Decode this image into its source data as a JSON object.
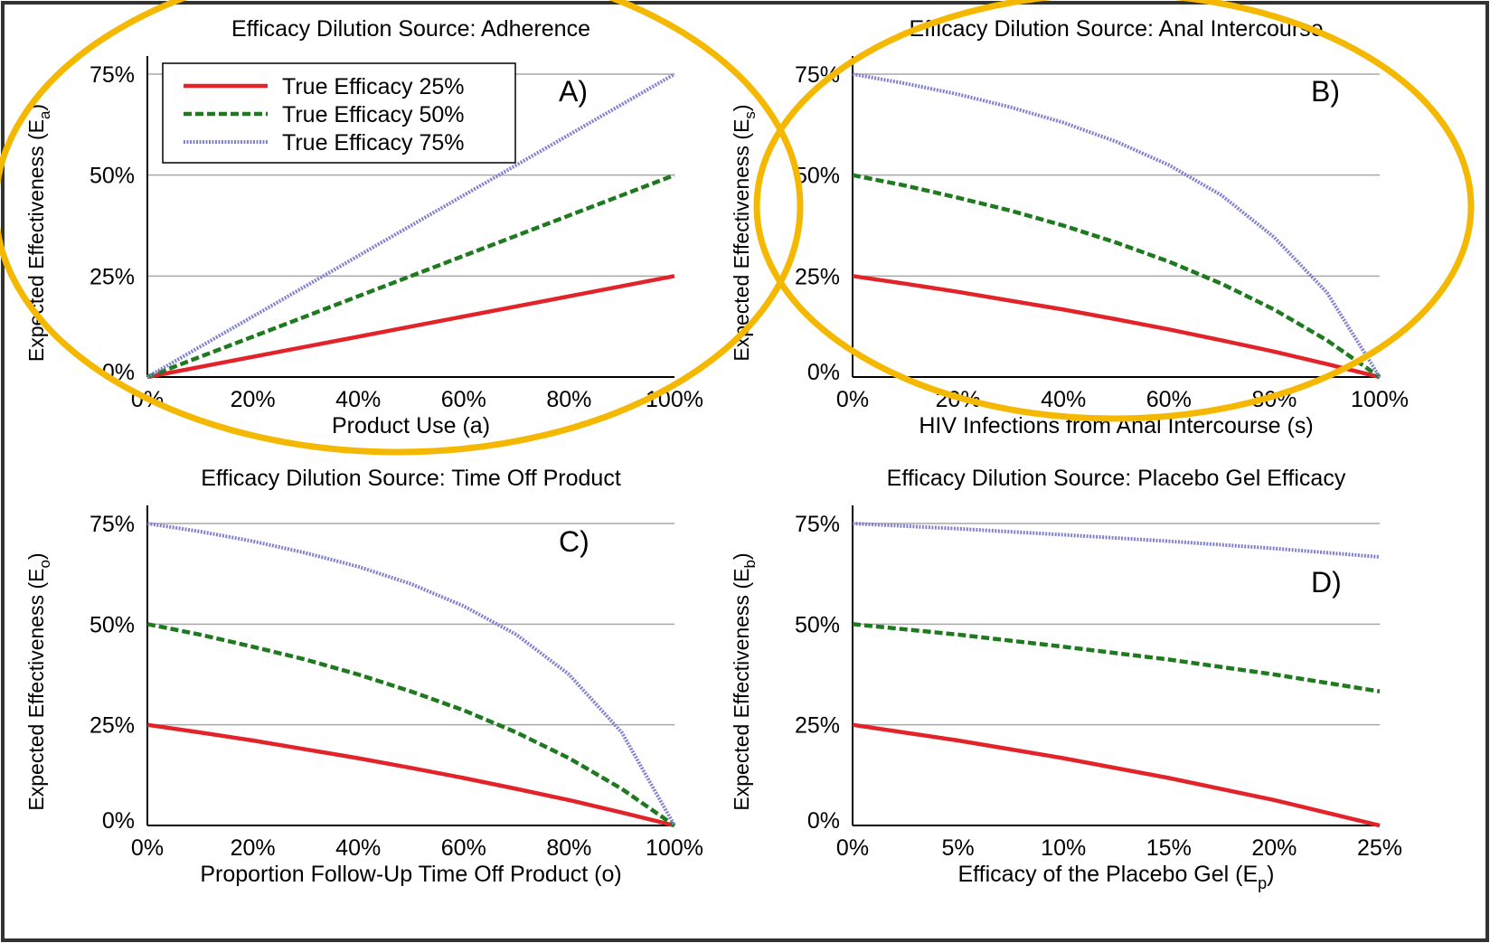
{
  "colors": {
    "frame_border": "#333333",
    "gridline": "#a8a8a8",
    "axis": "#000000",
    "series_25": "#e2232a",
    "series_50": "#1f7a1f",
    "series_75": "#8080d0",
    "annotation_circle": "#f5b800"
  },
  "legend": {
    "placement": "top-left inside panel A",
    "entries": [
      "True Efficacy 25%",
      "True Efficacy 50%",
      "True Efficacy 75%"
    ]
  },
  "annotations": {
    "circles": [
      "panel A",
      "panel B"
    ]
  },
  "chart_data": [
    {
      "type": "line",
      "panel": "A)",
      "title": "Efficacy Dilution Source: Adherence",
      "xlabel": "Product Use (a)",
      "ylabel": "Expected Effectiveness (Ea)",
      "ylabel_main": "Expected Effectiveness (E",
      "ylabel_sub": "a",
      "ylabel_end": ")",
      "xlim": [
        0,
        100
      ],
      "ylim": [
        0,
        75
      ],
      "xticks": [
        "0%",
        "20%",
        "40%",
        "60%",
        "80%",
        "100%"
      ],
      "xtick_values": [
        0,
        20,
        40,
        60,
        80,
        100
      ],
      "yticks": [
        "0%",
        "25%",
        "50%",
        "75%"
      ],
      "ytick_values": [
        0,
        25,
        50,
        75
      ],
      "grid": "horizontal",
      "x": [
        0,
        25,
        50,
        75,
        100
      ],
      "series": [
        {
          "name": "True Efficacy 25%",
          "values": [
            0,
            6.25,
            12.5,
            18.75,
            25
          ]
        },
        {
          "name": "True Efficacy 50%",
          "values": [
            0,
            12.5,
            25,
            37.5,
            50
          ]
        },
        {
          "name": "True Efficacy 75%",
          "values": [
            0,
            18.75,
            37.5,
            56.25,
            75
          ]
        }
      ]
    },
    {
      "type": "line",
      "panel": "B)",
      "title": "Efficacy Dilution Source: Anal Intercourse",
      "xlabel": "HIV Infections from Anal Intercourse (s)",
      "ylabel": "Expected Effectiveness (Es)",
      "ylabel_main": "Expected Effectiveness (E",
      "ylabel_sub": "s",
      "ylabel_end": ")",
      "xlim": [
        0,
        100
      ],
      "ylim": [
        0,
        75
      ],
      "xticks": [
        "0%",
        "20%",
        "40%",
        "60%",
        "80%",
        "100%"
      ],
      "xtick_values": [
        0,
        20,
        40,
        60,
        80,
        100
      ],
      "yticks": [
        "0%",
        "25%",
        "50%",
        "75%"
      ],
      "ytick_values": [
        0,
        25,
        50,
        75
      ],
      "grid": "horizontal",
      "x": [
        0,
        10,
        20,
        30,
        40,
        50,
        60,
        70,
        80,
        90,
        100
      ],
      "series": [
        {
          "name": "True Efficacy 25%",
          "values": [
            25,
            23.1,
            21.1,
            18.9,
            16.7,
            14.3,
            11.8,
            9.1,
            6.3,
            3.2,
            0
          ]
        },
        {
          "name": "True Efficacy 50%",
          "values": [
            50,
            47.4,
            44.4,
            41.2,
            37.5,
            33.3,
            28.6,
            23.1,
            16.7,
            9.1,
            0
          ]
        },
        {
          "name": "True Efficacy 75%",
          "values": [
            75,
            72.7,
            70.0,
            66.8,
            63.0,
            58.3,
            52.5,
            45.0,
            34.6,
            20.9,
            0
          ]
        }
      ]
    },
    {
      "type": "line",
      "panel": "C)",
      "title": "Efficacy Dilution Source: Time Off Product",
      "xlabel": "Proportion Follow-Up Time Off Product (o)",
      "ylabel": "Expected Effectiveness (Eo)",
      "ylabel_main": "Expected Effectiveness (E",
      "ylabel_sub": "o",
      "ylabel_end": ")",
      "xlim": [
        0,
        100
      ],
      "ylim": [
        0,
        75
      ],
      "xticks": [
        "0%",
        "20%",
        "40%",
        "60%",
        "80%",
        "100%"
      ],
      "xtick_values": [
        0,
        20,
        40,
        60,
        80,
        100
      ],
      "yticks": [
        "0%",
        "25%",
        "50%",
        "75%"
      ],
      "ytick_values": [
        0,
        25,
        50,
        75
      ],
      "grid": "horizontal",
      "x": [
        0,
        10,
        20,
        30,
        40,
        50,
        60,
        70,
        80,
        90,
        100
      ],
      "series": [
        {
          "name": "True Efficacy 25%",
          "values": [
            25,
            23.1,
            21.1,
            18.9,
            16.7,
            14.3,
            11.8,
            9.1,
            6.3,
            3.2,
            0
          ]
        },
        {
          "name": "True Efficacy 50%",
          "values": [
            50,
            47.4,
            44.4,
            41.2,
            37.5,
            33.3,
            28.6,
            23.1,
            16.7,
            9.1,
            0
          ]
        },
        {
          "name": "True Efficacy 75%",
          "values": [
            75,
            73.0,
            70.6,
            67.7,
            64.3,
            60.0,
            54.5,
            47.4,
            37.5,
            23.1,
            0
          ]
        }
      ]
    },
    {
      "type": "line",
      "panel": "D)",
      "title": "Efficacy Dilution Source: Placebo Gel Efficacy",
      "xlabel": "Efficacy of the Placebo Gel (Ep)",
      "xlabel_main": "Efficacy of the Placebo Gel (E",
      "xlabel_sub": "p",
      "xlabel_end": ")",
      "ylabel": "Expected Effectiveness (Eb)",
      "ylabel_main": "Expected Effectiveness (E",
      "ylabel_sub": "b",
      "ylabel_end": ")",
      "xlim": [
        0,
        25
      ],
      "ylim": [
        0,
        75
      ],
      "xticks": [
        "0%",
        "5%",
        "10%",
        "15%",
        "20%",
        "25%"
      ],
      "xtick_values": [
        0,
        5,
        10,
        15,
        20,
        25
      ],
      "yticks": [
        "0%",
        "25%",
        "50%",
        "75%"
      ],
      "ytick_values": [
        0,
        25,
        50,
        75
      ],
      "grid": "horizontal",
      "x": [
        0,
        5,
        10,
        15,
        20,
        25
      ],
      "series": [
        {
          "name": "True Efficacy 25%",
          "values": [
            25,
            21.1,
            16.7,
            11.8,
            6.3,
            0
          ]
        },
        {
          "name": "True Efficacy 50%",
          "values": [
            50,
            47.4,
            44.4,
            41.2,
            37.5,
            33.3
          ]
        },
        {
          "name": "True Efficacy 75%",
          "values": [
            75,
            73.7,
            72.2,
            70.6,
            68.8,
            66.7
          ]
        }
      ]
    }
  ]
}
